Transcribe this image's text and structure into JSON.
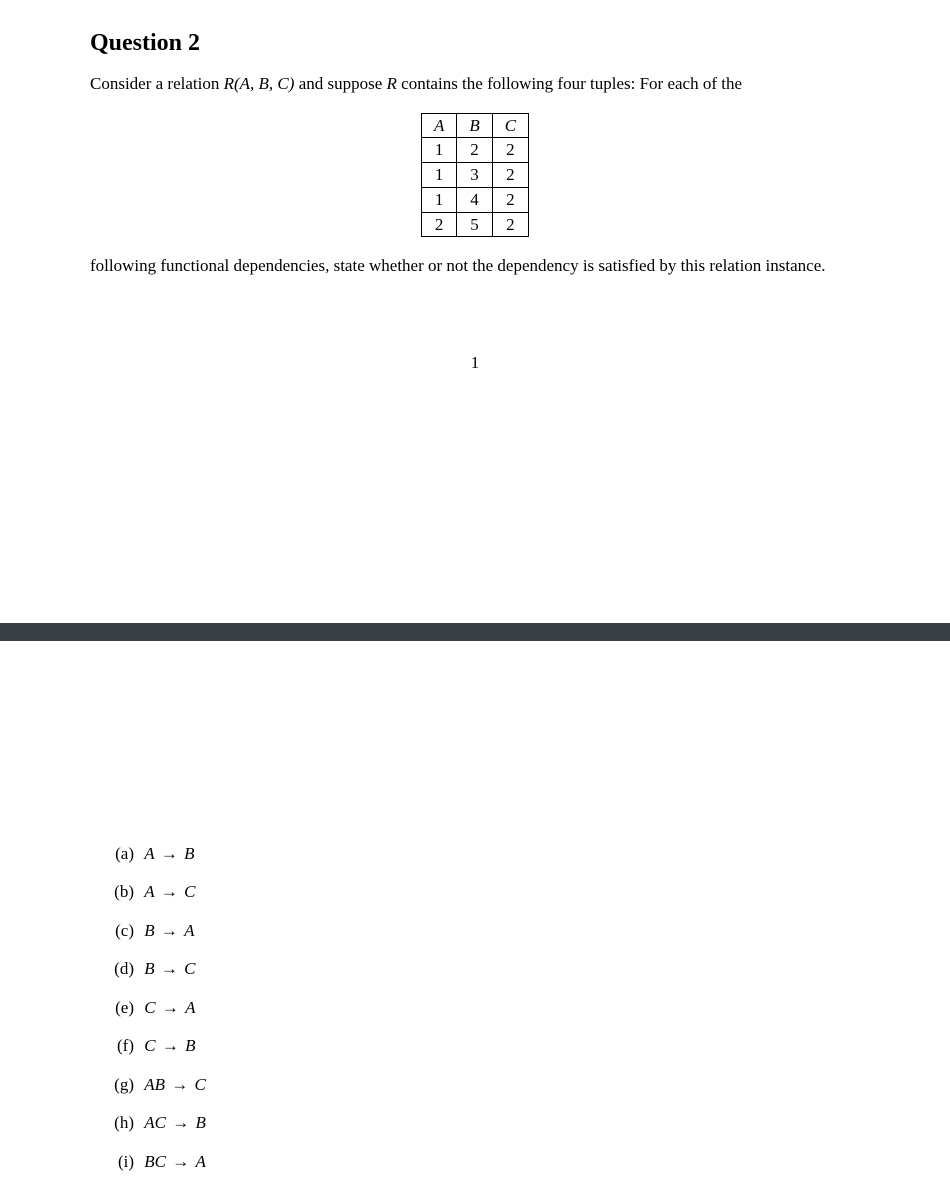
{
  "question": {
    "title": "Question 2",
    "intro_before": "Consider a relation ",
    "relation_name": "R",
    "relation_args": "(A, B, C)",
    "intro_mid": " and suppose ",
    "relation_ref": "R",
    "intro_after": " contains the following four tuples: For each of the",
    "after_table": "following functional dependencies, state whether or not the dependency is satisfied by this relation instance."
  },
  "table": {
    "columns": [
      "A",
      "B",
      "C"
    ],
    "rows": [
      [
        "1",
        "2",
        "2"
      ],
      [
        "1",
        "3",
        "2"
      ],
      [
        "1",
        "4",
        "2"
      ],
      [
        "2",
        "5",
        "2"
      ]
    ],
    "border_color": "#000000",
    "font_size": 17
  },
  "page_number": "1",
  "divider_color": "#3a3f44",
  "fd_items": [
    {
      "label": "(a)",
      "lhs": "A",
      "rhs": "B"
    },
    {
      "label": "(b)",
      "lhs": "A",
      "rhs": "C"
    },
    {
      "label": "(c)",
      "lhs": "B",
      "rhs": "A"
    },
    {
      "label": "(d)",
      "lhs": "B",
      "rhs": "C"
    },
    {
      "label": "(e)",
      "lhs": "C",
      "rhs": "A"
    },
    {
      "label": "(f)",
      "lhs": "C",
      "rhs": "B"
    },
    {
      "label": "(g)",
      "lhs": "AB",
      "rhs": "C"
    },
    {
      "label": "(h)",
      "lhs": "AC",
      "rhs": "B"
    },
    {
      "label": "(i)",
      "lhs": "BC",
      "rhs": "A"
    }
  ],
  "arrow_glyph": "→"
}
